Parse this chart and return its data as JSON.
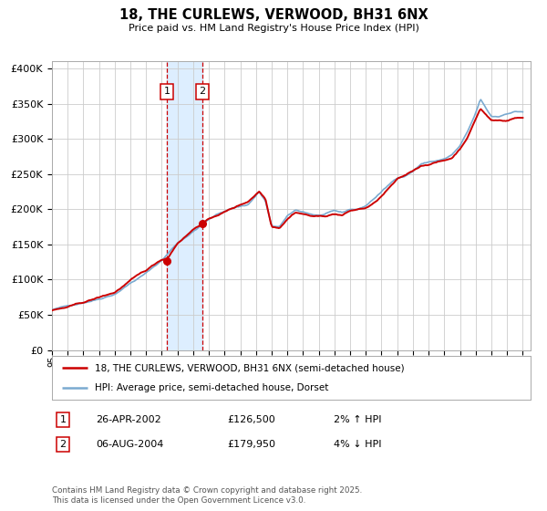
{
  "title": "18, THE CURLEWS, VERWOOD, BH31 6NX",
  "subtitle": "Price paid vs. HM Land Registry's House Price Index (HPI)",
  "legend_line1": "18, THE CURLEWS, VERWOOD, BH31 6NX (semi-detached house)",
  "legend_line2": "HPI: Average price, semi-detached house, Dorset",
  "footnote": "Contains HM Land Registry data © Crown copyright and database right 2025.\nThis data is licensed under the Open Government Licence v3.0.",
  "transaction1": {
    "label": "1",
    "date": "26-APR-2002",
    "price": 126500,
    "hpi_rel": "2% ↑ HPI"
  },
  "transaction2": {
    "label": "2",
    "date": "06-AUG-2004",
    "price": 179950,
    "hpi_rel": "4% ↓ HPI"
  },
  "price_color": "#cc0000",
  "hpi_color": "#7aaad0",
  "highlight_color": "#ddeeff",
  "dashed_color": "#cc0000",
  "background_color": "#ffffff",
  "grid_color": "#cccccc",
  "ylim": [
    0,
    410000
  ],
  "yticks": [
    0,
    50000,
    100000,
    150000,
    200000,
    250000,
    300000,
    350000,
    400000
  ],
  "xlim_start": 1995.0,
  "xlim_end": 2025.5,
  "t1_x": 2002.32,
  "t2_x": 2004.59
}
